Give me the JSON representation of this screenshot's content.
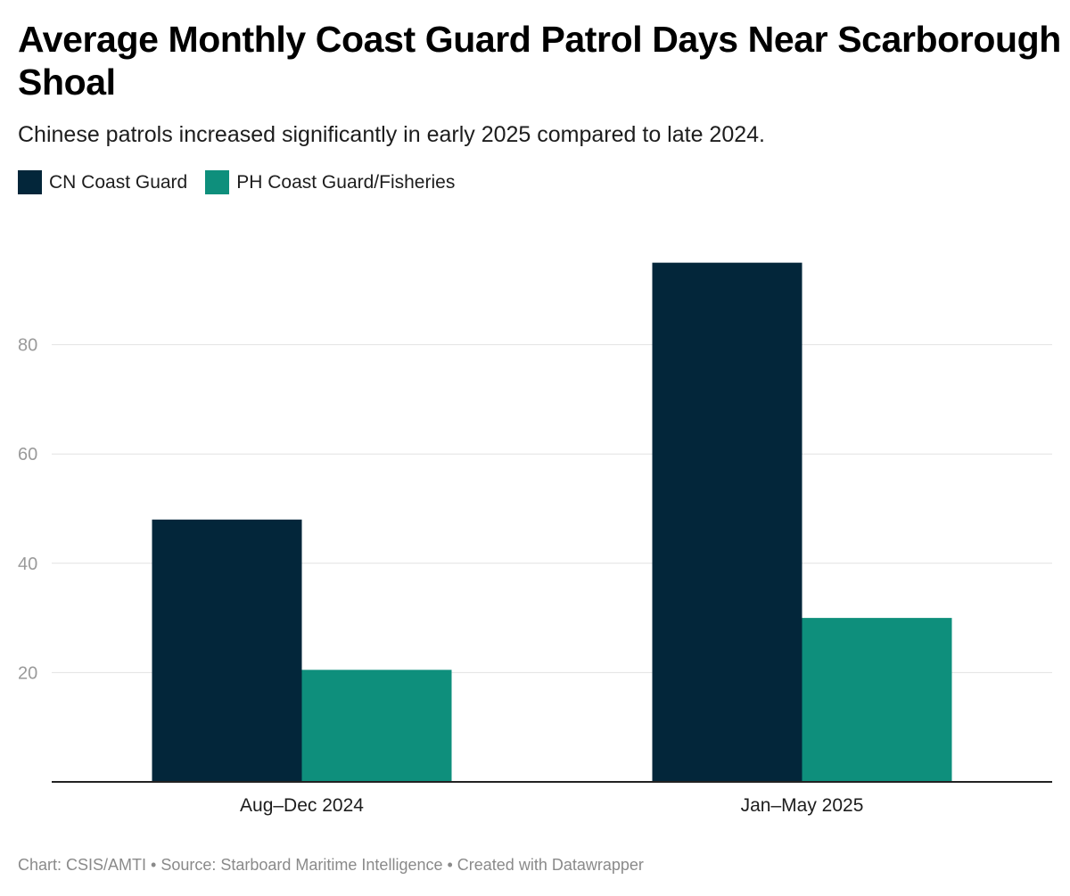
{
  "chart_data": {
    "type": "bar",
    "title": "Average Monthly Coast Guard Patrol Days Near Scarborough Shoal",
    "subtitle": "Chinese patrols increased significantly in early 2025 compared to late 2024.",
    "categories": [
      "Aug–Dec 2024",
      "Jan–May 2025"
    ],
    "series": [
      {
        "name": "CN Coast Guard",
        "color": "#03263a",
        "values": [
          48,
          95
        ]
      },
      {
        "name": "PH Coast Guard/Fisheries",
        "color": "#0e8f7c",
        "values": [
          20.5,
          30
        ]
      }
    ],
    "y_ticks": [
      20,
      40,
      60,
      80
    ],
    "ylim": [
      0,
      100
    ],
    "xlabel": "",
    "ylabel": "",
    "grid": true,
    "legend_position": "top-left"
  },
  "footer": "Chart: CSIS/AMTI • Source: Starboard Maritime Intelligence • Created with Datawrapper"
}
